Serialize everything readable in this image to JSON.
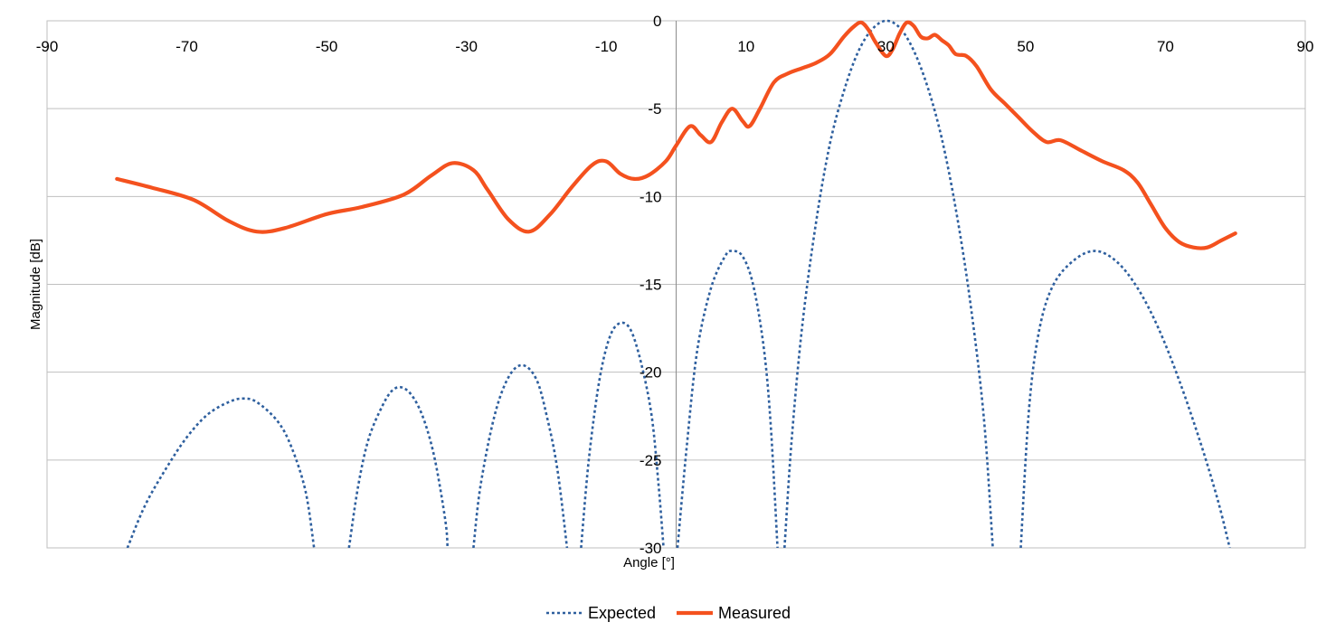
{
  "chart_data": {
    "type": "line",
    "title": "",
    "xlabel": "Angle [°]",
    "ylabel": "Magnitude [dB]",
    "xlim": [
      -90,
      90
    ],
    "ylim": [
      -30,
      0
    ],
    "x_ticks": [
      -90,
      -70,
      -50,
      -30,
      -10,
      10,
      30,
      50,
      70,
      90
    ],
    "y_ticks": [
      0,
      -5,
      -10,
      -15,
      -20,
      -25,
      -30
    ],
    "x_tick_labels": [
      "-90",
      "-70",
      "-50",
      "-30",
      "-10",
      "10",
      "30",
      "50",
      "70",
      "90"
    ],
    "y_tick_labels": [
      "0",
      "-5",
      "-10",
      "-15",
      "-20",
      "-25",
      "-30"
    ],
    "x_axis_position": "top",
    "grid": {
      "horizontal": true,
      "vertical": false
    },
    "legend": {
      "position": "bottom"
    },
    "series": [
      {
        "name": "Expected",
        "color": "#2e5f9e",
        "style": "dotted",
        "segments": [
          [
            [
              -78.5,
              -30
            ],
            [
              -76,
              -27.6
            ],
            [
              -73,
              -25.5
            ],
            [
              -70,
              -23.7
            ],
            [
              -67,
              -22.4
            ],
            [
              -64,
              -21.7
            ],
            [
              -62,
              -21.5
            ],
            [
              -60,
              -21.7
            ],
            [
              -57,
              -22.8
            ],
            [
              -55,
              -24.3
            ],
            [
              -53,
              -26.8
            ],
            [
              -51.8,
              -30
            ]
          ],
          [
            [
              -46.8,
              -30
            ],
            [
              -45.5,
              -26.5
            ],
            [
              -44,
              -23.8
            ],
            [
              -42,
              -21.9
            ],
            [
              -40.5,
              -21.0
            ],
            [
              -39,
              -20.9
            ],
            [
              -37.5,
              -21.5
            ],
            [
              -36,
              -22.8
            ],
            [
              -34.5,
              -25
            ],
            [
              -33,
              -28.5
            ],
            [
              -32.7,
              -30
            ]
          ],
          [
            [
              -29,
              -30
            ],
            [
              -28,
              -26.5
            ],
            [
              -26,
              -22.5
            ],
            [
              -24,
              -20.3
            ],
            [
              -22,
              -19.6
            ],
            [
              -20,
              -20.4
            ],
            [
              -18.5,
              -22.5
            ],
            [
              -17,
              -25.5
            ],
            [
              -15.6,
              -30
            ]
          ],
          [
            [
              -13.6,
              -30
            ],
            [
              -12.5,
              -25
            ],
            [
              -11,
              -20.5
            ],
            [
              -9.5,
              -18.0
            ],
            [
              -8,
              -17.2
            ],
            [
              -6.5,
              -17.6
            ],
            [
              -5,
              -19.5
            ],
            [
              -3.5,
              -22.5
            ],
            [
              -2.5,
              -26.5
            ],
            [
              -1.8,
              -30
            ]
          ],
          [
            [
              0.2,
              -30
            ],
            [
              1.5,
              -24.3
            ],
            [
              3,
              -18.8
            ],
            [
              5,
              -15.2
            ],
            [
              7,
              -13.4
            ],
            [
              8,
              -13.1
            ],
            [
              9.5,
              -13.4
            ],
            [
              11,
              -15.0
            ],
            [
              12.5,
              -18.5
            ],
            [
              13.5,
              -22.8
            ],
            [
              14.5,
              -30
            ]
          ],
          [
            [
              15.5,
              -30
            ],
            [
              16.5,
              -24
            ],
            [
              18,
              -17.5
            ],
            [
              20,
              -11.5
            ],
            [
              22,
              -7.0
            ],
            [
              24,
              -4.0
            ],
            [
              26,
              -1.8
            ],
            [
              28,
              -0.5
            ],
            [
              30,
              0
            ],
            [
              32,
              -0.4
            ],
            [
              34,
              -1.7
            ],
            [
              36,
              -3.8
            ],
            [
              38,
              -6.7
            ],
            [
              40,
              -10.7
            ],
            [
              42,
              -15.8
            ],
            [
              44,
              -22.5
            ],
            [
              45.3,
              -30
            ]
          ],
          [
            [
              49.3,
              -30
            ],
            [
              50.5,
              -22
            ],
            [
              52,
              -17.5
            ],
            [
              54,
              -15.0
            ],
            [
              57,
              -13.6
            ],
            [
              60,
              -13.1
            ],
            [
              63,
              -13.7
            ],
            [
              66,
              -15.2
            ],
            [
              69,
              -17.5
            ],
            [
              72,
              -20.5
            ],
            [
              75,
              -24
            ],
            [
              77.5,
              -27.3
            ],
            [
              79.2,
              -30
            ]
          ]
        ]
      },
      {
        "name": "Measured",
        "color": "#f4511e",
        "style": "solid",
        "points": [
          [
            -80,
            -9.0
          ],
          [
            -75,
            -9.5
          ],
          [
            -69,
            -10.2
          ],
          [
            -64,
            -11.4
          ],
          [
            -60,
            -12.0
          ],
          [
            -56,
            -11.8
          ],
          [
            -50,
            -11.0
          ],
          [
            -45,
            -10.6
          ],
          [
            -39,
            -9.9
          ],
          [
            -35,
            -8.8
          ],
          [
            -32,
            -8.1
          ],
          [
            -29,
            -8.5
          ],
          [
            -27,
            -9.6
          ],
          [
            -24,
            -11.3
          ],
          [
            -21,
            -12.0
          ],
          [
            -18,
            -11.0
          ],
          [
            -15,
            -9.5
          ],
          [
            -12,
            -8.2
          ],
          [
            -10,
            -8.0
          ],
          [
            -8,
            -8.7
          ],
          [
            -6,
            -9.0
          ],
          [
            -4,
            -8.8
          ],
          [
            -1.5,
            -8.0
          ],
          [
            0,
            -7.1
          ],
          [
            2,
            -6.0
          ],
          [
            3.5,
            -6.5
          ],
          [
            5,
            -6.9
          ],
          [
            6.5,
            -5.8
          ],
          [
            8,
            -5.0
          ],
          [
            9.5,
            -5.7
          ],
          [
            10.5,
            -6.0
          ],
          [
            12,
            -5.0
          ],
          [
            14,
            -3.5
          ],
          [
            16,
            -3.0
          ],
          [
            18,
            -2.7
          ],
          [
            20,
            -2.4
          ],
          [
            22,
            -1.9
          ],
          [
            24,
            -0.9
          ],
          [
            25.5,
            -0.3
          ],
          [
            26.5,
            -0.1
          ],
          [
            27.5,
            -0.5
          ],
          [
            28.5,
            -1.2
          ],
          [
            30,
            -2.0
          ],
          [
            31,
            -1.6
          ],
          [
            32,
            -0.7
          ],
          [
            33,
            -0.1
          ],
          [
            34,
            -0.3
          ],
          [
            35,
            -0.9
          ],
          [
            36,
            -1.0
          ],
          [
            37,
            -0.8
          ],
          [
            38,
            -1.1
          ],
          [
            39,
            -1.4
          ],
          [
            40,
            -1.9
          ],
          [
            41.5,
            -2.0
          ],
          [
            43,
            -2.6
          ],
          [
            45,
            -3.9
          ],
          [
            47,
            -4.7
          ],
          [
            49,
            -5.5
          ],
          [
            51,
            -6.3
          ],
          [
            53,
            -6.9
          ],
          [
            55,
            -6.8
          ],
          [
            58,
            -7.4
          ],
          [
            61,
            -8.0
          ],
          [
            64,
            -8.5
          ],
          [
            66,
            -9.2
          ],
          [
            68,
            -10.5
          ],
          [
            70,
            -11.8
          ],
          [
            72,
            -12.6
          ],
          [
            74,
            -12.9
          ],
          [
            76,
            -12.9
          ],
          [
            78,
            -12.5
          ],
          [
            80,
            -12.1
          ]
        ]
      }
    ]
  }
}
